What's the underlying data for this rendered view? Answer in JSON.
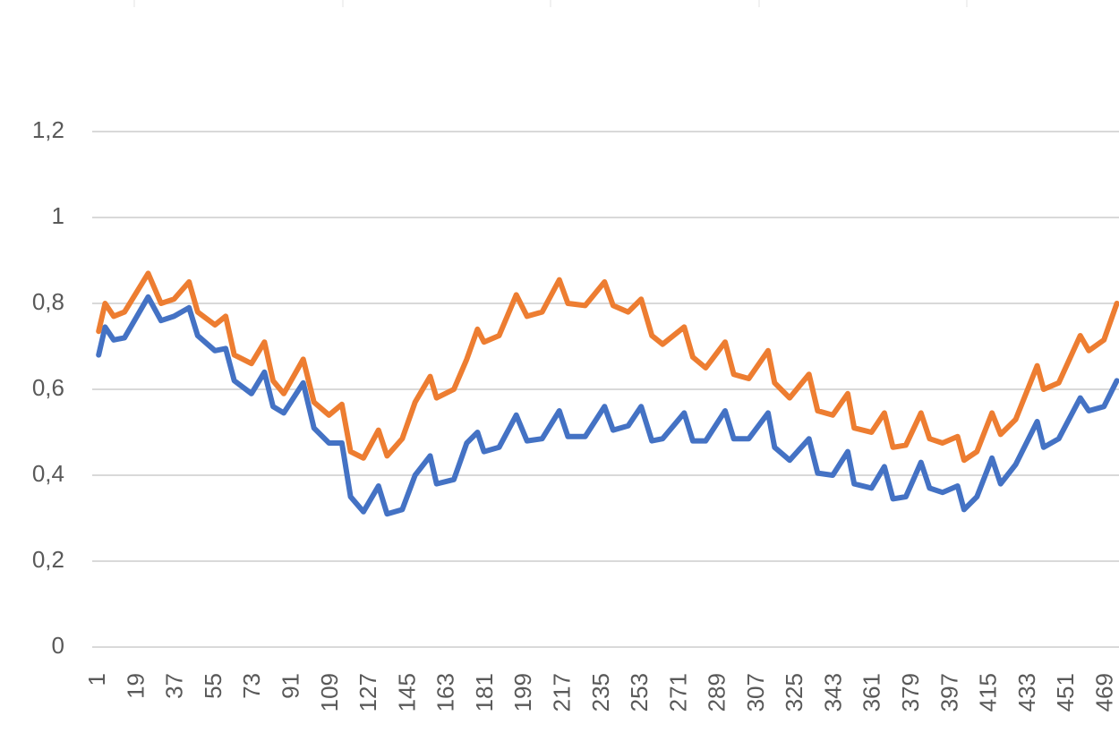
{
  "chart_data": {
    "type": "line",
    "x": [
      1,
      4,
      8,
      13,
      24,
      30,
      36,
      43,
      47,
      55,
      60,
      64,
      72,
      78,
      82,
      87,
      96,
      101,
      108,
      114,
      118,
      124,
      131,
      135,
      142,
      148,
      155,
      158,
      166,
      172,
      177,
      180,
      187,
      195,
      200,
      207,
      215,
      219,
      227,
      236,
      240,
      247,
      253,
      258,
      263,
      273,
      277,
      283,
      292,
      296,
      303,
      312,
      315,
      322,
      331,
      335,
      342,
      349,
      352,
      360,
      366,
      370,
      376,
      383,
      387,
      393,
      400,
      403,
      409,
      416,
      420,
      427,
      437,
      440,
      447,
      457,
      461,
      468,
      474
    ],
    "xlim": [
      -2,
      475
    ],
    "xticks": [
      1,
      19,
      37,
      55,
      73,
      91,
      109,
      127,
      145,
      163,
      181,
      199,
      217,
      235,
      253,
      271,
      289,
      307,
      325,
      343,
      361,
      379,
      397,
      415,
      433,
      451,
      469
    ],
    "ylim": [
      0,
      1.2
    ],
    "yticks": [
      0,
      {
        "value": 0.2,
        "label": "0,2"
      },
      {
        "value": 0.4,
        "label": "0,4"
      },
      {
        "value": 0.6,
        "label": "0,6"
      },
      {
        "value": 0.8,
        "label": "0,8"
      },
      1,
      {
        "value": 1.2,
        "label": "1,2"
      }
    ],
    "grid": true,
    "series": [
      {
        "color": "#4472c4",
        "values": [
          0.68,
          0.745,
          0.715,
          0.72,
          0.815,
          0.76,
          0.77,
          0.79,
          0.725,
          0.69,
          0.695,
          0.62,
          0.59,
          0.64,
          0.56,
          0.545,
          0.615,
          0.51,
          0.475,
          0.475,
          0.35,
          0.315,
          0.375,
          0.31,
          0.32,
          0.4,
          0.445,
          0.38,
          0.39,
          0.475,
          0.5,
          0.455,
          0.465,
          0.54,
          0.48,
          0.485,
          0.55,
          0.49,
          0.49,
          0.56,
          0.505,
          0.515,
          0.56,
          0.48,
          0.485,
          0.545,
          0.48,
          0.48,
          0.55,
          0.485,
          0.485,
          0.545,
          0.465,
          0.435,
          0.485,
          0.405,
          0.4,
          0.455,
          0.38,
          0.37,
          0.42,
          0.345,
          0.35,
          0.43,
          0.37,
          0.36,
          0.375,
          0.32,
          0.35,
          0.44,
          0.38,
          0.425,
          0.525,
          0.465,
          0.485,
          0.58,
          0.55,
          0.56,
          0.62
        ]
      },
      {
        "color": "#ed7d31",
        "values": [
          0.735,
          0.8,
          0.77,
          0.78,
          0.87,
          0.8,
          0.81,
          0.85,
          0.78,
          0.75,
          0.77,
          0.68,
          0.66,
          0.71,
          0.62,
          0.59,
          0.67,
          0.57,
          0.54,
          0.565,
          0.455,
          0.44,
          0.505,
          0.445,
          0.485,
          0.57,
          0.63,
          0.58,
          0.6,
          0.67,
          0.74,
          0.71,
          0.725,
          0.82,
          0.77,
          0.78,
          0.855,
          0.8,
          0.795,
          0.85,
          0.795,
          0.78,
          0.81,
          0.725,
          0.705,
          0.745,
          0.675,
          0.65,
          0.71,
          0.635,
          0.625,
          0.69,
          0.615,
          0.58,
          0.635,
          0.55,
          0.54,
          0.59,
          0.51,
          0.5,
          0.545,
          0.465,
          0.47,
          0.545,
          0.485,
          0.475,
          0.49,
          0.435,
          0.455,
          0.545,
          0.495,
          0.53,
          0.655,
          0.6,
          0.615,
          0.725,
          0.69,
          0.715,
          0.8
        ]
      }
    ]
  }
}
